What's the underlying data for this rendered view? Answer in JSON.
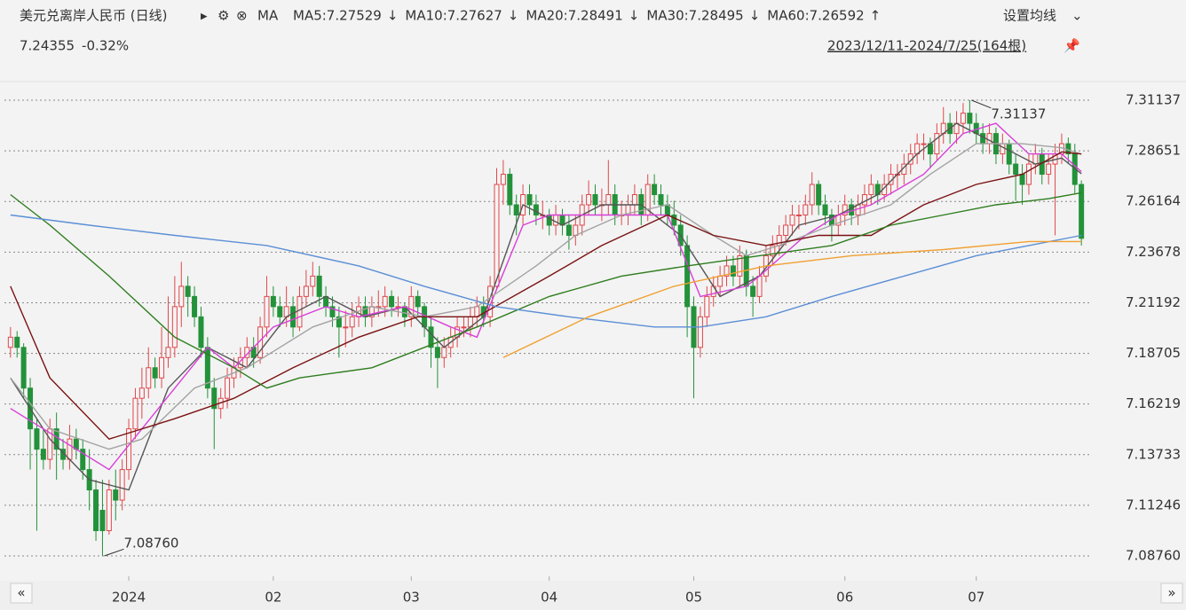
{
  "chart_data": {
    "type": "candlestick",
    "title": "美元兑离岸人民币 (日线)",
    "indicator": "MA",
    "settings_label": "设置均线",
    "range_label": "2023/12/11-2024/7/25(164根)",
    "last": 7.24355,
    "change": -0.32,
    "change_label": "-0.32%",
    "xlim": [
      -1.6,
      164.6
    ],
    "ylim": [
      7.07759,
      7.31921
    ],
    "yticks": [
      7.31137,
      7.28651,
      7.26164,
      7.23678,
      7.21192,
      7.18705,
      7.16219,
      7.13733,
      7.11246,
      {
        "value": 7.0876,
        "label": "7.08760"
      }
    ],
    "xticks": [
      {
        "value": 18,
        "label": "2024"
      },
      {
        "value": 40,
        "label": "02"
      },
      {
        "value": 61,
        "label": "03"
      },
      {
        "value": 82,
        "label": "04"
      },
      {
        "value": 104,
        "label": "05"
      },
      {
        "value": 127,
        "label": "06"
      },
      {
        "value": 147,
        "label": "07"
      }
    ],
    "grid": true,
    "up_color": "#e0474c",
    "down_color": "#23923a",
    "high_marker": {
      "x": 146,
      "value": 7.31137,
      "label": "7.31137"
    },
    "low_marker": {
      "x": 14,
      "value": 7.0876,
      "label": "7.08760"
    },
    "ohlc": [
      [
        7.19,
        7.2,
        7.185,
        7.195
      ],
      [
        7.195,
        7.198,
        7.185,
        7.19
      ],
      [
        7.19,
        7.192,
        7.165,
        7.17
      ],
      [
        7.17,
        7.175,
        7.13,
        7.15
      ],
      [
        7.15,
        7.155,
        7.1,
        7.14
      ],
      [
        7.14,
        7.15,
        7.13,
        7.135
      ],
      [
        7.135,
        7.155,
        7.13,
        7.15
      ],
      [
        7.15,
        7.158,
        7.125,
        7.14
      ],
      [
        7.14,
        7.145,
        7.13,
        7.135
      ],
      [
        7.135,
        7.152,
        7.13,
        7.145
      ],
      [
        7.145,
        7.15,
        7.135,
        7.14
      ],
      [
        7.14,
        7.145,
        7.125,
        7.13
      ],
      [
        7.13,
        7.14,
        7.11,
        7.12
      ],
      [
        7.12,
        7.125,
        7.095,
        7.1
      ],
      [
        7.11,
        7.125,
        7.0876,
        7.1
      ],
      [
        7.1,
        7.125,
        7.098,
        7.12
      ],
      [
        7.12,
        7.13,
        7.105,
        7.115
      ],
      [
        7.115,
        7.135,
        7.11,
        7.13
      ],
      [
        7.13,
        7.155,
        7.125,
        7.15
      ],
      [
        7.15,
        7.17,
        7.145,
        7.165
      ],
      [
        7.165,
        7.18,
        7.155,
        7.17
      ],
      [
        7.17,
        7.19,
        7.165,
        7.18
      ],
      [
        7.18,
        7.185,
        7.17,
        7.175
      ],
      [
        7.175,
        7.2,
        7.17,
        7.185
      ],
      [
        7.185,
        7.215,
        7.18,
        7.19
      ],
      [
        7.19,
        7.225,
        7.185,
        7.21
      ],
      [
        7.21,
        7.232,
        7.2,
        7.22
      ],
      [
        7.22,
        7.225,
        7.205,
        7.215
      ],
      [
        7.215,
        7.22,
        7.2,
        7.205
      ],
      [
        7.205,
        7.21,
        7.185,
        7.19
      ],
      [
        7.19,
        7.195,
        7.165,
        7.17
      ],
      [
        7.17,
        7.175,
        7.14,
        7.16
      ],
      [
        7.16,
        7.17,
        7.155,
        7.165
      ],
      [
        7.165,
        7.18,
        7.16,
        7.175
      ],
      [
        7.175,
        7.185,
        7.17,
        7.18
      ],
      [
        7.18,
        7.19,
        7.175,
        7.185
      ],
      [
        7.185,
        7.195,
        7.18,
        7.19
      ],
      [
        7.19,
        7.195,
        7.18,
        7.185
      ],
      [
        7.185,
        7.205,
        7.182,
        7.2
      ],
      [
        7.2,
        7.225,
        7.195,
        7.215
      ],
      [
        7.215,
        7.22,
        7.205,
        7.21
      ],
      [
        7.21,
        7.215,
        7.2,
        7.205
      ],
      [
        7.205,
        7.22,
        7.2,
        7.21
      ],
      [
        7.21,
        7.215,
        7.195,
        7.2
      ],
      [
        7.2,
        7.22,
        7.198,
        7.215
      ],
      [
        7.215,
        7.228,
        7.21,
        7.22
      ],
      [
        7.22,
        7.232,
        7.215,
        7.225
      ],
      [
        7.225,
        7.23,
        7.21,
        7.215
      ],
      [
        7.215,
        7.22,
        7.205,
        7.21
      ],
      [
        7.21,
        7.215,
        7.2,
        7.205
      ],
      [
        7.205,
        7.21,
        7.185,
        7.2
      ],
      [
        7.2,
        7.208,
        7.19,
        7.2
      ],
      [
        7.2,
        7.212,
        7.195,
        7.205
      ],
      [
        7.205,
        7.215,
        7.2,
        7.21
      ],
      [
        7.21,
        7.215,
        7.2,
        7.205
      ],
      [
        7.205,
        7.215,
        7.2,
        7.21
      ],
      [
        7.21,
        7.218,
        7.205,
        7.21
      ],
      [
        7.21,
        7.22,
        7.205,
        7.215
      ],
      [
        7.215,
        7.218,
        7.205,
        7.21
      ],
      [
        7.21,
        7.215,
        7.205,
        7.21
      ],
      [
        7.21,
        7.212,
        7.2,
        7.205
      ],
      [
        7.205,
        7.22,
        7.2,
        7.215
      ],
      [
        7.215,
        7.218,
        7.205,
        7.21
      ],
      [
        7.21,
        7.212,
        7.195,
        7.2
      ],
      [
        7.2,
        7.205,
        7.18,
        7.19
      ],
      [
        7.19,
        7.195,
        7.17,
        7.185
      ],
      [
        7.185,
        7.195,
        7.18,
        7.19
      ],
      [
        7.19,
        7.2,
        7.185,
        7.195
      ],
      [
        7.195,
        7.205,
        7.19,
        7.2
      ],
      [
        7.2,
        7.205,
        7.195,
        7.2
      ],
      [
        7.2,
        7.21,
        7.195,
        7.205
      ],
      [
        7.205,
        7.215,
        7.2,
        7.21
      ],
      [
        7.21,
        7.215,
        7.2,
        7.205
      ],
      [
        7.205,
        7.225,
        7.2,
        7.22
      ],
      [
        7.22,
        7.278,
        7.218,
        7.27
      ],
      [
        7.27,
        7.282,
        7.26,
        7.275
      ],
      [
        7.275,
        7.278,
        7.255,
        7.26
      ],
      [
        7.26,
        7.265,
        7.245,
        7.255
      ],
      [
        7.255,
        7.27,
        7.25,
        7.265
      ],
      [
        7.265,
        7.27,
        7.255,
        7.26
      ],
      [
        7.26,
        7.265,
        7.25,
        7.255
      ],
      [
        7.255,
        7.262,
        7.248,
        7.255
      ],
      [
        7.255,
        7.258,
        7.245,
        7.25
      ],
      [
        7.25,
        7.26,
        7.245,
        7.255
      ],
      [
        7.255,
        7.258,
        7.245,
        7.25
      ],
      [
        7.25,
        7.255,
        7.238,
        7.245
      ],
      [
        7.245,
        7.255,
        7.24,
        7.25
      ],
      [
        7.25,
        7.265,
        7.245,
        7.26
      ],
      [
        7.26,
        7.272,
        7.255,
        7.265
      ],
      [
        7.265,
        7.27,
        7.255,
        7.26
      ],
      [
        7.26,
        7.268,
        7.252,
        7.26
      ],
      [
        7.26,
        7.282,
        7.255,
        7.265
      ],
      [
        7.265,
        7.27,
        7.25,
        7.255
      ],
      [
        7.255,
        7.262,
        7.25,
        7.255
      ],
      [
        7.255,
        7.265,
        7.25,
        7.26
      ],
      [
        7.26,
        7.27,
        7.255,
        7.265
      ],
      [
        7.265,
        7.268,
        7.25,
        7.255
      ],
      [
        7.255,
        7.275,
        7.252,
        7.27
      ],
      [
        7.27,
        7.275,
        7.26,
        7.265
      ],
      [
        7.265,
        7.27,
        7.255,
        7.26
      ],
      [
        7.26,
        7.265,
        7.25,
        7.255
      ],
      [
        7.255,
        7.262,
        7.245,
        7.25
      ],
      [
        7.25,
        7.255,
        7.235,
        7.24
      ],
      [
        7.24,
        7.245,
        7.195,
        7.21
      ],
      [
        7.21,
        7.215,
        7.165,
        7.19
      ],
      [
        7.19,
        7.21,
        7.185,
        7.205
      ],
      [
        7.205,
        7.22,
        7.2,
        7.215
      ],
      [
        7.215,
        7.225,
        7.21,
        7.22
      ],
      [
        7.22,
        7.23,
        7.215,
        7.225
      ],
      [
        7.225,
        7.235,
        7.22,
        7.23
      ],
      [
        7.23,
        7.235,
        7.22,
        7.225
      ],
      [
        7.225,
        7.24,
        7.22,
        7.235
      ],
      [
        7.235,
        7.238,
        7.215,
        7.22
      ],
      [
        7.22,
        7.225,
        7.205,
        7.215
      ],
      [
        7.215,
        7.23,
        7.212,
        7.225
      ],
      [
        7.225,
        7.24,
        7.222,
        7.235
      ],
      [
        7.235,
        7.245,
        7.23,
        7.24
      ],
      [
        7.24,
        7.25,
        7.235,
        7.245
      ],
      [
        7.245,
        7.255,
        7.24,
        7.25
      ],
      [
        7.25,
        7.26,
        7.245,
        7.255
      ],
      [
        7.255,
        7.26,
        7.248,
        7.255
      ],
      [
        7.255,
        7.265,
        7.25,
        7.26
      ],
      [
        7.26,
        7.276,
        7.255,
        7.27
      ],
      [
        7.27,
        7.272,
        7.255,
        7.26
      ],
      [
        7.26,
        7.265,
        7.25,
        7.255
      ],
      [
        7.255,
        7.258,
        7.242,
        7.25
      ],
      [
        7.25,
        7.26,
        7.245,
        7.255
      ],
      [
        7.255,
        7.265,
        7.25,
        7.26
      ],
      [
        7.26,
        7.263,
        7.25,
        7.255
      ],
      [
        7.255,
        7.265,
        7.25,
        7.26
      ],
      [
        7.26,
        7.27,
        7.255,
        7.265
      ],
      [
        7.265,
        7.275,
        7.26,
        7.27
      ],
      [
        7.27,
        7.272,
        7.26,
        7.265
      ],
      [
        7.265,
        7.275,
        7.262,
        7.27
      ],
      [
        7.27,
        7.28,
        7.265,
        7.275
      ],
      [
        7.275,
        7.28,
        7.268,
        7.275
      ],
      [
        7.275,
        7.285,
        7.27,
        7.28
      ],
      [
        7.28,
        7.29,
        7.275,
        7.285
      ],
      [
        7.285,
        7.295,
        7.28,
        7.29
      ],
      [
        7.29,
        7.295,
        7.282,
        7.29
      ],
      [
        7.29,
        7.293,
        7.278,
        7.285
      ],
      [
        7.285,
        7.3,
        7.282,
        7.295
      ],
      [
        7.295,
        7.308,
        7.29,
        7.3
      ],
      [
        7.3,
        7.305,
        7.29,
        7.295
      ],
      [
        7.295,
        7.306,
        7.29,
        7.3
      ],
      [
        7.3,
        7.31,
        7.295,
        7.305
      ],
      [
        7.305,
        7.31137,
        7.295,
        7.3
      ],
      [
        7.3,
        7.305,
        7.29,
        7.295
      ],
      [
        7.295,
        7.3,
        7.285,
        7.29
      ],
      [
        7.29,
        7.3,
        7.285,
        7.295
      ],
      [
        7.295,
        7.298,
        7.28,
        7.285
      ],
      [
        7.285,
        7.295,
        7.28,
        7.29
      ],
      [
        7.29,
        7.292,
        7.275,
        7.28
      ],
      [
        7.28,
        7.285,
        7.262,
        7.275
      ],
      [
        7.275,
        7.28,
        7.26,
        7.27
      ],
      [
        7.27,
        7.285,
        7.265,
        7.28
      ],
      [
        7.28,
        7.29,
        7.275,
        7.285
      ],
      [
        7.285,
        7.288,
        7.27,
        7.275
      ],
      [
        7.275,
        7.285,
        7.27,
        7.28
      ],
      [
        7.28,
        7.29,
        7.245,
        7.285
      ],
      [
        7.285,
        7.295,
        7.28,
        7.29
      ],
      [
        7.29,
        7.293,
        7.28,
        7.285
      ],
      [
        7.285,
        7.29,
        7.265,
        7.27
      ],
      [
        7.27,
        7.272,
        7.24,
        7.24355
      ]
    ],
    "series": [
      {
        "name": "MA5",
        "legend_label": "MA5:7.27529",
        "trend": "↓",
        "color": "#555555",
        "x": [
          0,
          6,
          12,
          18,
          24,
          30,
          36,
          42,
          48,
          54,
          60,
          66,
          72,
          78,
          84,
          90,
          96,
          102,
          108,
          114,
          120,
          126,
          132,
          138,
          144,
          150,
          156,
          160,
          163
        ],
        "values": [
          7.175,
          7.145,
          7.125,
          7.12,
          7.17,
          7.19,
          7.18,
          7.205,
          7.215,
          7.205,
          7.21,
          7.19,
          7.205,
          7.26,
          7.25,
          7.26,
          7.26,
          7.245,
          7.215,
          7.225,
          7.25,
          7.255,
          7.265,
          7.285,
          7.3,
          7.29,
          7.28,
          7.283,
          7.27529
        ]
      },
      {
        "name": "MA10",
        "legend_label": "MA10:7.27627",
        "trend": "↓",
        "color": "#d83fd8",
        "x": [
          0,
          15,
          30,
          34,
          40,
          48,
          53,
          60,
          67,
          71,
          78,
          82,
          93,
          100,
          105,
          112,
          114,
          121,
          126,
          131,
          139,
          145,
          150,
          155,
          160,
          163
        ],
        "values": [
          7.16,
          7.13,
          7.19,
          7.18,
          7.2,
          7.21,
          7.205,
          7.21,
          7.2,
          7.195,
          7.25,
          7.255,
          7.255,
          7.255,
          7.215,
          7.22,
          7.225,
          7.245,
          7.255,
          7.26,
          7.275,
          7.295,
          7.3,
          7.285,
          7.285,
          7.27627
        ]
      },
      {
        "name": "MA20",
        "legend_label": "MA20:7.28491",
        "trend": "↓",
        "color": "#a3a3a3",
        "x": [
          0,
          6,
          15,
          20,
          28,
          36,
          46,
          55,
          63,
          71,
          80,
          86,
          93,
          100,
          107,
          112,
          117,
          125,
          134,
          140,
          147,
          154,
          160,
          163
        ],
        "values": [
          7.175,
          7.15,
          7.14,
          7.145,
          7.17,
          7.18,
          7.2,
          7.21,
          7.205,
          7.21,
          7.23,
          7.245,
          7.255,
          7.26,
          7.245,
          7.235,
          7.24,
          7.25,
          7.26,
          7.275,
          7.29,
          7.29,
          7.288,
          7.28491
        ]
      },
      {
        "name": "MA30",
        "legend_label": "MA30:7.28495",
        "trend": "↓",
        "color": "#7a1212",
        "x": [
          0,
          6,
          15,
          25,
          34,
          43,
          53,
          62,
          71,
          82,
          90,
          100,
          107,
          115,
          123,
          131,
          139,
          147,
          154,
          160,
          163
        ],
        "values": [
          7.22,
          7.175,
          7.145,
          7.155,
          7.165,
          7.18,
          7.195,
          7.205,
          7.205,
          7.225,
          7.24,
          7.255,
          7.245,
          7.24,
          7.245,
          7.245,
          7.26,
          7.27,
          7.275,
          7.286,
          7.28495
        ]
      },
      {
        "name": "MA60",
        "legend_label": "MA60:7.26592",
        "trend": "↑",
        "color": "#2e7d1e",
        "x": [
          0,
          6,
          15,
          25,
          34,
          39,
          44,
          55,
          63,
          71,
          82,
          93,
          103,
          114,
          125,
          134,
          142,
          150,
          158,
          163
        ],
        "values": [
          7.265,
          7.25,
          7.225,
          7.195,
          7.18,
          7.17,
          7.175,
          7.18,
          7.19,
          7.2,
          7.215,
          7.225,
          7.23,
          7.235,
          7.24,
          7.25,
          7.255,
          7.26,
          7.263,
          7.26592
        ]
      },
      {
        "color": "#5b8fd6",
        "x": [
          0,
          12,
          25,
          39,
          53,
          63,
          74,
          85,
          98,
          105,
          115,
          125,
          136,
          147,
          155,
          163
        ],
        "values": [
          7.255,
          7.25,
          7.245,
          7.24,
          7.23,
          7.22,
          7.21,
          7.205,
          7.2,
          7.2,
          7.205,
          7.215,
          7.225,
          7.235,
          7.24,
          7.245
        ]
      },
      {
        "color": "#f0a030",
        "x": [
          75,
          88,
          101,
          115,
          128,
          142,
          155,
          163
        ],
        "values": [
          7.185,
          7.205,
          7.22,
          7.23,
          7.235,
          7.238,
          7.242,
          7.242
        ]
      }
    ]
  }
}
